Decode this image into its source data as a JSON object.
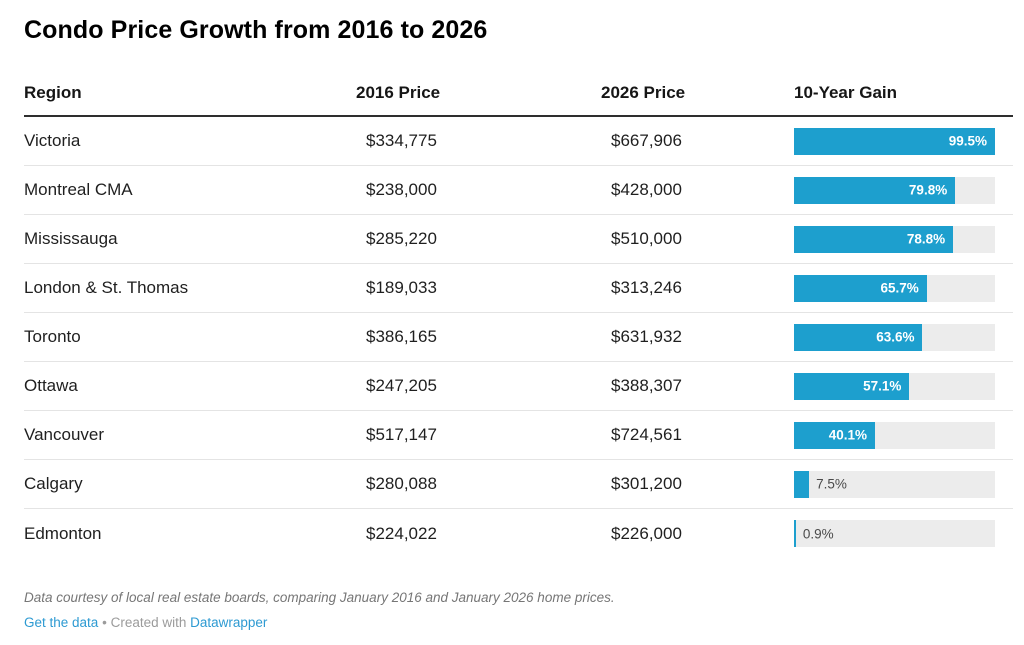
{
  "title": "Condo Price Growth from 2016 to 2026",
  "chart_data": {
    "type": "table",
    "title": "Condo Price Growth from 2016 to 2026",
    "columns": [
      "Region",
      "2016 Price",
      "2026 Price",
      "10-Year Gain"
    ],
    "bar_column": "10-Year Gain",
    "bar": {
      "scale_max": 99.5,
      "inside_label_min_pct": 15
    },
    "rows": [
      {
        "region": "Victoria",
        "price_2016": 334775,
        "price_2026": 667906,
        "gain_pct": 99.5,
        "price_2016_label": "$334,775",
        "price_2026_label": "$667,906",
        "gain_label": "99.5%"
      },
      {
        "region": "Montreal CMA",
        "price_2016": 238000,
        "price_2026": 428000,
        "gain_pct": 79.8,
        "price_2016_label": "$238,000",
        "price_2026_label": "$428,000",
        "gain_label": "79.8%"
      },
      {
        "region": "Mississauga",
        "price_2016": 285220,
        "price_2026": 510000,
        "gain_pct": 78.8,
        "price_2016_label": "$285,220",
        "price_2026_label": "$510,000",
        "gain_label": "78.8%"
      },
      {
        "region": "London & St. Thomas",
        "price_2016": 189033,
        "price_2026": 313246,
        "gain_pct": 65.7,
        "price_2016_label": "$189,033",
        "price_2026_label": "$313,246",
        "gain_label": "65.7%"
      },
      {
        "region": "Toronto",
        "price_2016": 386165,
        "price_2026": 631932,
        "gain_pct": 63.6,
        "price_2016_label": "$386,165",
        "price_2026_label": "$631,932",
        "gain_label": "63.6%"
      },
      {
        "region": "Ottawa",
        "price_2016": 247205,
        "price_2026": 388307,
        "gain_pct": 57.1,
        "price_2016_label": "$247,205",
        "price_2026_label": "$388,307",
        "gain_label": "57.1%"
      },
      {
        "region": "Vancouver",
        "price_2016": 517147,
        "price_2026": 724561,
        "gain_pct": 40.1,
        "price_2016_label": "$517,147",
        "price_2026_label": "$724,561",
        "gain_label": "40.1%"
      },
      {
        "region": "Calgary",
        "price_2016": 280088,
        "price_2026": 301200,
        "gain_pct": 7.5,
        "price_2016_label": "$280,088",
        "price_2026_label": "$301,200",
        "gain_label": "7.5%"
      },
      {
        "region": "Edmonton",
        "price_2016": 224022,
        "price_2026": 226000,
        "gain_pct": 0.9,
        "price_2016_label": "$224,022",
        "price_2026_label": "$226,000",
        "gain_label": "0.9%"
      }
    ]
  },
  "footer": {
    "note": "Data courtesy of local real estate boards, comparing January 2016 and January 2026 home prices.",
    "get_data_label": "Get the data",
    "separator": "•",
    "created_with": "Created with",
    "datawrapper_label": "Datawrapper"
  },
  "colors": {
    "bar_fill": "#1d9fce",
    "bar_track": "#ececec",
    "link": "#2d9ad2",
    "divider": "#e4e4e4",
    "note_text": "#767676"
  }
}
